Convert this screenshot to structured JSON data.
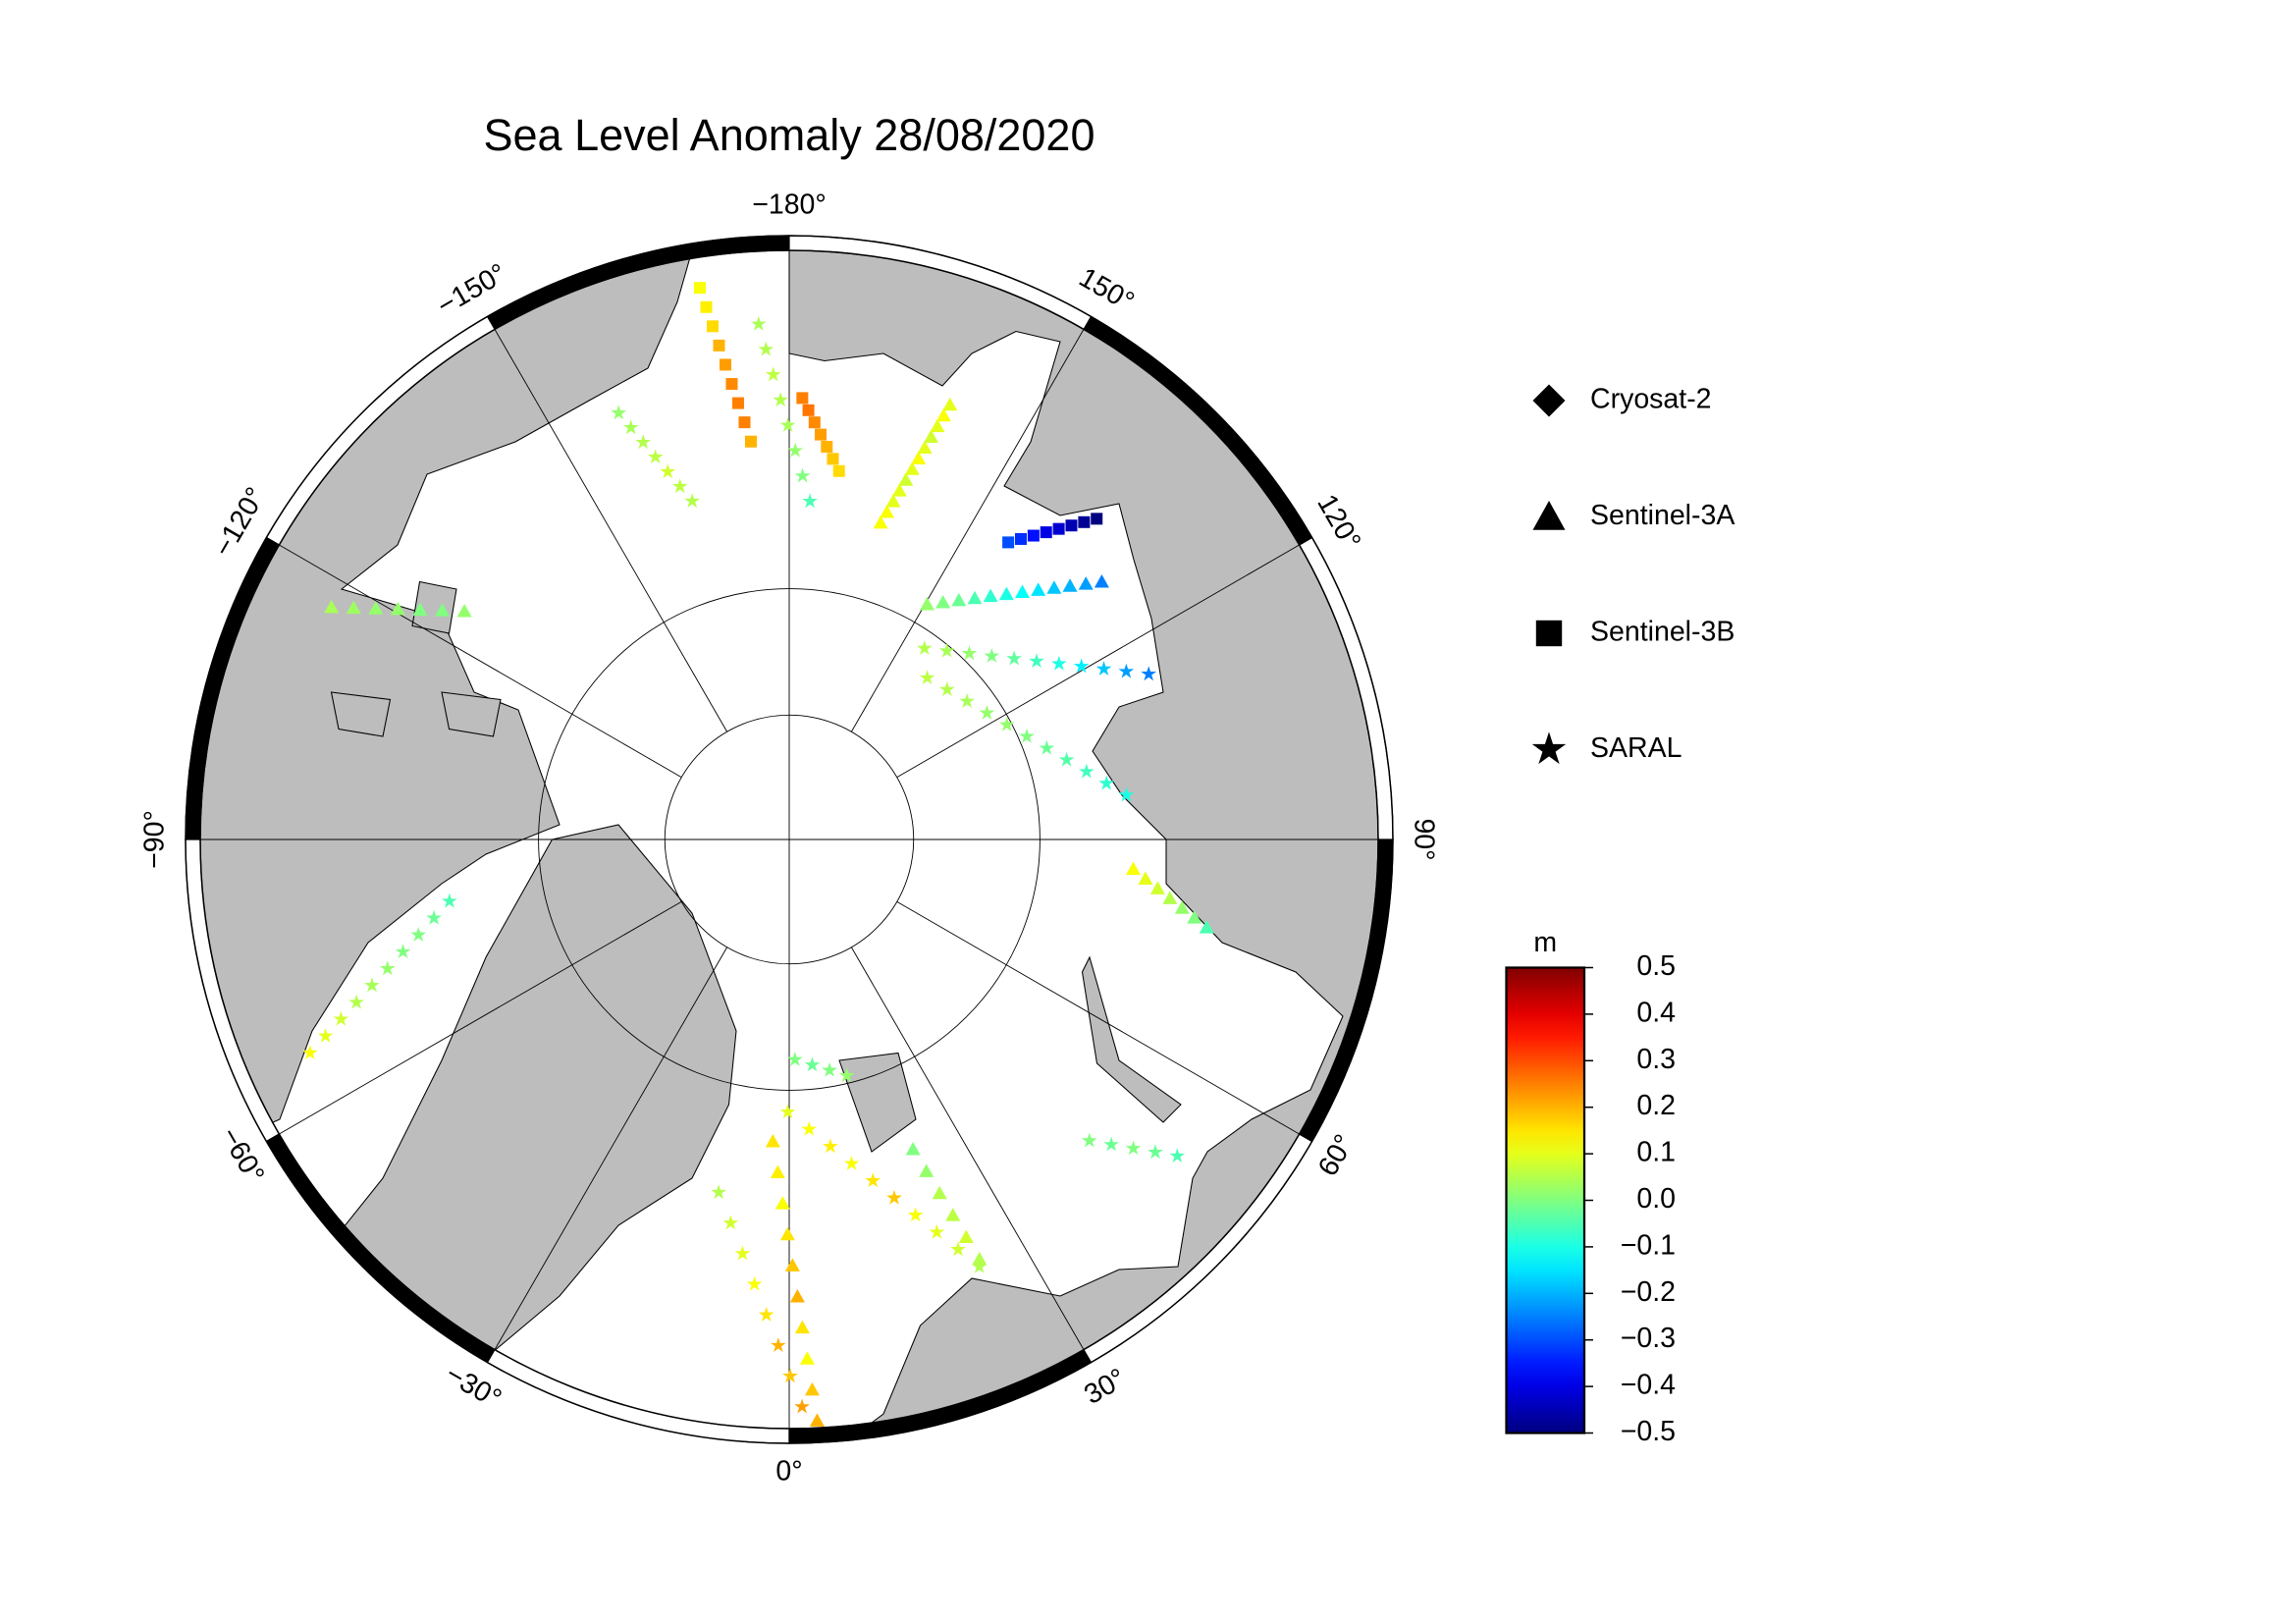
{
  "chart_data": {
    "type": "polar-map",
    "title": "Sea Level Anomaly 28/08/2020",
    "lat_range": [
      45,
      90
    ],
    "lon_ticks": [
      {
        "value": -180,
        "label": "−180°"
      },
      {
        "value": 150,
        "label": "150°"
      },
      {
        "value": 120,
        "label": "120°"
      },
      {
        "value": 90,
        "label": "90°"
      },
      {
        "value": 60,
        "label": "60°"
      },
      {
        "value": 30,
        "label": "30°"
      },
      {
        "value": 0,
        "label": "0°"
      },
      {
        "value": -30,
        "label": "−30°"
      },
      {
        "value": -60,
        "label": "−60°"
      },
      {
        "value": -90,
        "label": "−90°"
      },
      {
        "value": -120,
        "label": "−120°"
      },
      {
        "value": -150,
        "label": "−150°"
      }
    ],
    "legend": [
      {
        "name": "Cryosat-2",
        "marker": "diamond"
      },
      {
        "name": "Sentinel-3A",
        "marker": "triangle"
      },
      {
        "name": "Sentinel-3B",
        "marker": "square"
      },
      {
        "name": "SARAL",
        "marker": "star"
      }
    ],
    "colorbar": {
      "unit": "m",
      "colormap": "jet",
      "lim": [
        -0.5,
        0.5
      ],
      "ticks": [
        0.5,
        0.4,
        0.3,
        0.2,
        0.1,
        {
          "value": 0,
          "label": "0.0"
        },
        {
          "value": -0.1,
          "label": "−0.1"
        },
        {
          "value": -0.2,
          "label": "−0.2"
        },
        {
          "value": -0.3,
          "label": "−0.3"
        },
        {
          "value": -0.4,
          "label": "−0.4"
        },
        {
          "value": -0.5,
          "label": "−0.5"
        }
      ]
    },
    "tracks": [
      {
        "satellite": "Sentinel-3A",
        "start": [
          163.9,
          63.9
        ],
        "end": [
          159.7,
          53.9
        ],
        "values": [
          0.12,
          0.12,
          0.1,
          0.1,
          0.08,
          0.1,
          0.12,
          0.1,
          0.08,
          0.1,
          0.12,
          0.1
        ]
      },
      {
        "satellite": "Sentinel-3A",
        "start": [
          149.6,
          68.3
        ],
        "end": [
          129.5,
          58.2
        ],
        "values": [
          0.02,
          0.0,
          -0.02,
          -0.05,
          -0.08,
          -0.1,
          -0.12,
          -0.15,
          -0.18,
          -0.2,
          -0.22,
          -0.25
        ]
      },
      {
        "satellite": "Sentinel-3B",
        "start": [
          143.6,
          60.9
        ],
        "end": [
          136.2,
          55.3
        ],
        "values": [
          -0.3,
          -0.33,
          -0.36,
          -0.4,
          -0.42,
          -0.45,
          -0.48,
          -0.5
        ]
      },
      {
        "satellite": "SARAL",
        "start": [
          144.7,
          71.3
        ],
        "end": [
          114.7,
          58.9
        ],
        "values": [
          0.05,
          0.04,
          0.02,
          0.0,
          -0.03,
          -0.06,
          -0.1,
          -0.14,
          -0.18,
          -0.22,
          -0.25
        ]
      },
      {
        "satellite": "SARAL",
        "start": [
          139.5,
          73.0
        ],
        "end": [
          97.5,
          63.1
        ],
        "values": [
          0.06,
          0.05,
          0.04,
          0.02,
          0.02,
          0.0,
          -0.02,
          -0.04,
          -0.06,
          -0.08,
          -0.1
        ]
      },
      {
        "satellite": "Sentinel-3B",
        "start": [
          178.3,
          55.5
        ],
        "end": [
          172.3,
          60.7
        ],
        "values": [
          0.25,
          0.26,
          0.24,
          0.22,
          0.2,
          0.18,
          0.16
        ]
      },
      {
        "satellite": "Sentinel-3B",
        "start": [
          -170.8,
          47.1
        ],
        "end": [
          -174.5,
          58.6
        ],
        "values": [
          0.12,
          0.14,
          0.16,
          0.2,
          0.22,
          0.24,
          0.25,
          0.25,
          0.2
        ]
      },
      {
        "satellite": "SARAL",
        "start": [
          -176.6,
          50.1
        ],
        "end": [
          176.5,
          63.2
        ],
        "values": [
          0.04,
          0.05,
          0.06,
          0.05,
          0.04,
          0.02,
          0.0,
          -0.05
        ]
      },
      {
        "satellite": "SARAL",
        "start": [
          -158.2,
          54.2
        ],
        "end": [
          -164.0,
          62.2
        ],
        "values": [
          0.02,
          0.04,
          0.05,
          0.06,
          0.08,
          0.06,
          0.05
        ]
      },
      {
        "satellite": "Sentinel-3A",
        "start": [
          -116.9,
          50.3
        ],
        "end": [
          -125.1,
          58.8
        ],
        "values": [
          0.04,
          0.03,
          0.02,
          0.02,
          0.0,
          0.0,
          0.02
        ]
      },
      {
        "satellite": "SARAL",
        "start": [
          -66.0,
          49.5
        ],
        "end": [
          -79.7,
          62.7
        ],
        "values": [
          0.12,
          0.1,
          0.08,
          0.05,
          0.04,
          0.02,
          0.0,
          0.0,
          -0.02,
          -0.05
        ]
      },
      {
        "satellite": "SARAL",
        "start": [
          1.5,
          72.4
        ],
        "end": [
          13.7,
          70.6
        ],
        "values": [
          0.0,
          -0.02,
          0.0,
          0.02
        ]
      },
      {
        "satellite": "SARAL",
        "start": [
          -0.3,
          68.3
        ],
        "end": [
          24.0,
          53.6
        ],
        "values": [
          0.1,
          0.12,
          0.14,
          0.12,
          0.15,
          0.18,
          0.12,
          0.1,
          0.08,
          0.05
        ]
      },
      {
        "satellite": "Sentinel-3A",
        "start": [
          21.8,
          63.6
        ],
        "end": [
          24.4,
          54.1
        ],
        "values": [
          0.0,
          0.02,
          0.05,
          0.06,
          0.08,
          0.05
        ]
      },
      {
        "satellite": "Sentinel-3A",
        "start": [
          -3.1,
          66.0
        ],
        "end": [
          2.75,
          45.5
        ],
        "values": [
          0.15,
          0.14,
          0.12,
          0.15,
          0.18,
          0.2,
          0.15,
          0.12,
          0.18,
          0.2
        ]
      },
      {
        "satellite": "SARAL",
        "start": [
          -11.3,
          61.6
        ],
        "end": [
          1.3,
          46.5
        ],
        "values": [
          0.05,
          0.08,
          0.1,
          0.12,
          0.15,
          0.2,
          0.18,
          0.22
        ]
      },
      {
        "satellite": "SARAL",
        "start": [
          44.9,
          56.7
        ],
        "end": [
          50.8,
          51.2
        ],
        "values": [
          0.0,
          -0.02,
          0.0,
          -0.02,
          -0.05
        ]
      },
      {
        "satellite": "Sentinel-3A",
        "start": [
          85.1,
          62.7
        ],
        "end": [
          78.1,
          56.6
        ],
        "values": [
          0.12,
          0.1,
          0.08,
          0.05,
          0.02,
          0.0,
          -0.05
        ]
      }
    ]
  }
}
